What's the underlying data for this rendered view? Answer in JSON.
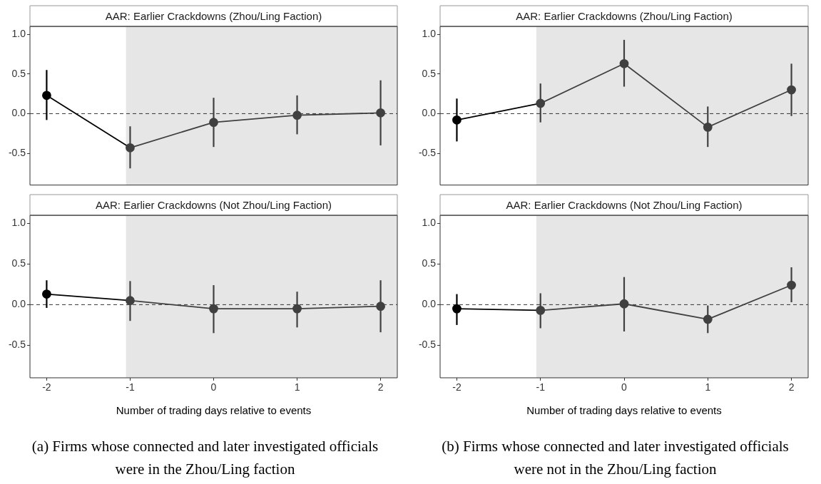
{
  "chart_data": [
    {
      "type": "line",
      "title": "AAR: Earlier Crackdowns (Zhou/Ling Faction)",
      "series": [
        {
          "color": "#000000",
          "x": [
            -2,
            -1
          ],
          "values": [
            0.23,
            -0.43
          ],
          "errors": [
            [
              -0.08,
              0.55
            ],
            null
          ]
        },
        {
          "color": "#404040",
          "x": [
            -1,
            0,
            1,
            2
          ],
          "values": [
            -0.43,
            -0.11,
            -0.02,
            0.01
          ],
          "errors": [
            [
              -0.69,
              -0.16
            ],
            [
              -0.42,
              0.2
            ],
            [
              -0.26,
              0.23
            ],
            [
              -0.4,
              0.42
            ]
          ]
        }
      ],
      "xlim": [
        -2.2,
        2.2
      ],
      "xticks": [
        -2,
        -1,
        0,
        1,
        2
      ],
      "ylim": [
        -0.9,
        1.1
      ],
      "yticks": [
        {
          "value": -0.5,
          "label": "-0.5"
        },
        {
          "value": 0,
          "label": "0.0"
        },
        {
          "value": 0.5,
          "label": "0.5"
        },
        {
          "value": 1,
          "label": "1.0"
        }
      ],
      "bands": [
        {
          "axis": "x",
          "from": -1.05,
          "to": 2.2,
          "color": "#e6e6e6"
        }
      ],
      "ref_lines": [
        {
          "axis": "y",
          "value": 0,
          "line_style": "dashed",
          "color": "#333333"
        }
      ],
      "marker": "circle",
      "line_style": "solid",
      "grid": false,
      "tick_labels": "y"
    },
    {
      "type": "line",
      "title": "AAR: Earlier Crackdowns (Not Zhou/Ling Faction)",
      "xlabel": "Number of trading days relative to events",
      "series": [
        {
          "color": "#000000",
          "x": [
            -2,
            -1
          ],
          "values": [
            0.13,
            0.05
          ],
          "errors": [
            [
              -0.04,
              0.3
            ],
            null
          ]
        },
        {
          "color": "#404040",
          "x": [
            -1,
            0,
            1,
            2
          ],
          "values": [
            0.05,
            -0.05,
            -0.05,
            -0.02
          ],
          "errors": [
            [
              -0.2,
              0.29
            ],
            [
              -0.35,
              0.24
            ],
            [
              -0.28,
              0.16
            ],
            [
              -0.34,
              0.3
            ]
          ]
        }
      ],
      "xlim": [
        -2.2,
        2.2
      ],
      "xticks": [
        -2,
        -1,
        0,
        1,
        2
      ],
      "ylim": [
        -0.9,
        1.1
      ],
      "yticks": [
        {
          "value": -0.5,
          "label": "-0.5"
        },
        {
          "value": 0,
          "label": "0.0"
        },
        {
          "value": 0.5,
          "label": "0.5"
        },
        {
          "value": 1,
          "label": "1.0"
        }
      ],
      "bands": [
        {
          "axis": "x",
          "from": -1.05,
          "to": 2.2,
          "color": "#e6e6e6"
        }
      ],
      "ref_lines": [
        {
          "axis": "y",
          "value": 0,
          "line_style": "dashed",
          "color": "#333333"
        }
      ],
      "marker": "circle",
      "line_style": "solid",
      "grid": false,
      "annotations": [
        "(a) Firms whose connected and later investigated officials were in the Zhou/Ling faction"
      ]
    },
    {
      "type": "line",
      "title": "AAR: Earlier Crackdowns (Zhou/Ling Faction)",
      "series": [
        {
          "color": "#000000",
          "x": [
            -2,
            -1
          ],
          "values": [
            -0.08,
            0.13
          ],
          "errors": [
            [
              -0.35,
              0.19
            ],
            null
          ]
        },
        {
          "color": "#404040",
          "x": [
            -1,
            0,
            1,
            2
          ],
          "values": [
            0.13,
            0.63,
            -0.17,
            0.3
          ],
          "errors": [
            [
              -0.11,
              0.38
            ],
            [
              0.34,
              0.93
            ],
            [
              -0.42,
              0.09
            ],
            [
              -0.03,
              0.63
            ]
          ]
        }
      ],
      "xlim": [
        -2.2,
        2.2
      ],
      "xticks": [
        -2,
        -1,
        0,
        1,
        2
      ],
      "ylim": [
        -0.9,
        1.1
      ],
      "yticks": [
        {
          "value": -0.5,
          "label": "-0.5"
        },
        {
          "value": 0,
          "label": "0.0"
        },
        {
          "value": 0.5,
          "label": "0.5"
        },
        {
          "value": 1,
          "label": "1.0"
        }
      ],
      "bands": [
        {
          "axis": "x",
          "from": -1.05,
          "to": 2.2,
          "color": "#e6e6e6"
        }
      ],
      "ref_lines": [
        {
          "axis": "y",
          "value": 0,
          "line_style": "dashed",
          "color": "#333333"
        }
      ],
      "marker": "circle",
      "line_style": "solid",
      "grid": false,
      "tick_labels": "y"
    },
    {
      "type": "line",
      "title": "AAR: Earlier Crackdowns (Not Zhou/Ling Faction)",
      "xlabel": "Number of trading days relative to events",
      "series": [
        {
          "color": "#000000",
          "x": [
            -2,
            -1
          ],
          "values": [
            -0.05,
            -0.07
          ],
          "errors": [
            [
              -0.25,
              0.13
            ],
            null
          ]
        },
        {
          "color": "#404040",
          "x": [
            -1,
            0,
            1,
            2
          ],
          "values": [
            -0.07,
            0.01,
            -0.18,
            0.24
          ],
          "errors": [
            [
              -0.29,
              0.14
            ],
            [
              -0.33,
              0.34
            ],
            [
              -0.35,
              -0.01
            ],
            [
              0.03,
              0.46
            ]
          ]
        }
      ],
      "xlim": [
        -2.2,
        2.2
      ],
      "xticks": [
        -2,
        -1,
        0,
        1,
        2
      ],
      "ylim": [
        -0.9,
        1.1
      ],
      "yticks": [
        {
          "value": -0.5,
          "label": "-0.5"
        },
        {
          "value": 0,
          "label": "0.0"
        },
        {
          "value": 0.5,
          "label": "0.5"
        },
        {
          "value": 1,
          "label": "1.0"
        }
      ],
      "bands": [
        {
          "axis": "x",
          "from": -1.05,
          "to": 2.2,
          "color": "#e6e6e6"
        }
      ],
      "ref_lines": [
        {
          "axis": "y",
          "value": 0,
          "line_style": "dashed",
          "color": "#333333"
        }
      ],
      "marker": "circle",
      "line_style": "solid",
      "grid": false,
      "annotations": [
        "(b) Firms whose connected and later investigated officials were not in the Zhou/Ling faction"
      ]
    }
  ]
}
